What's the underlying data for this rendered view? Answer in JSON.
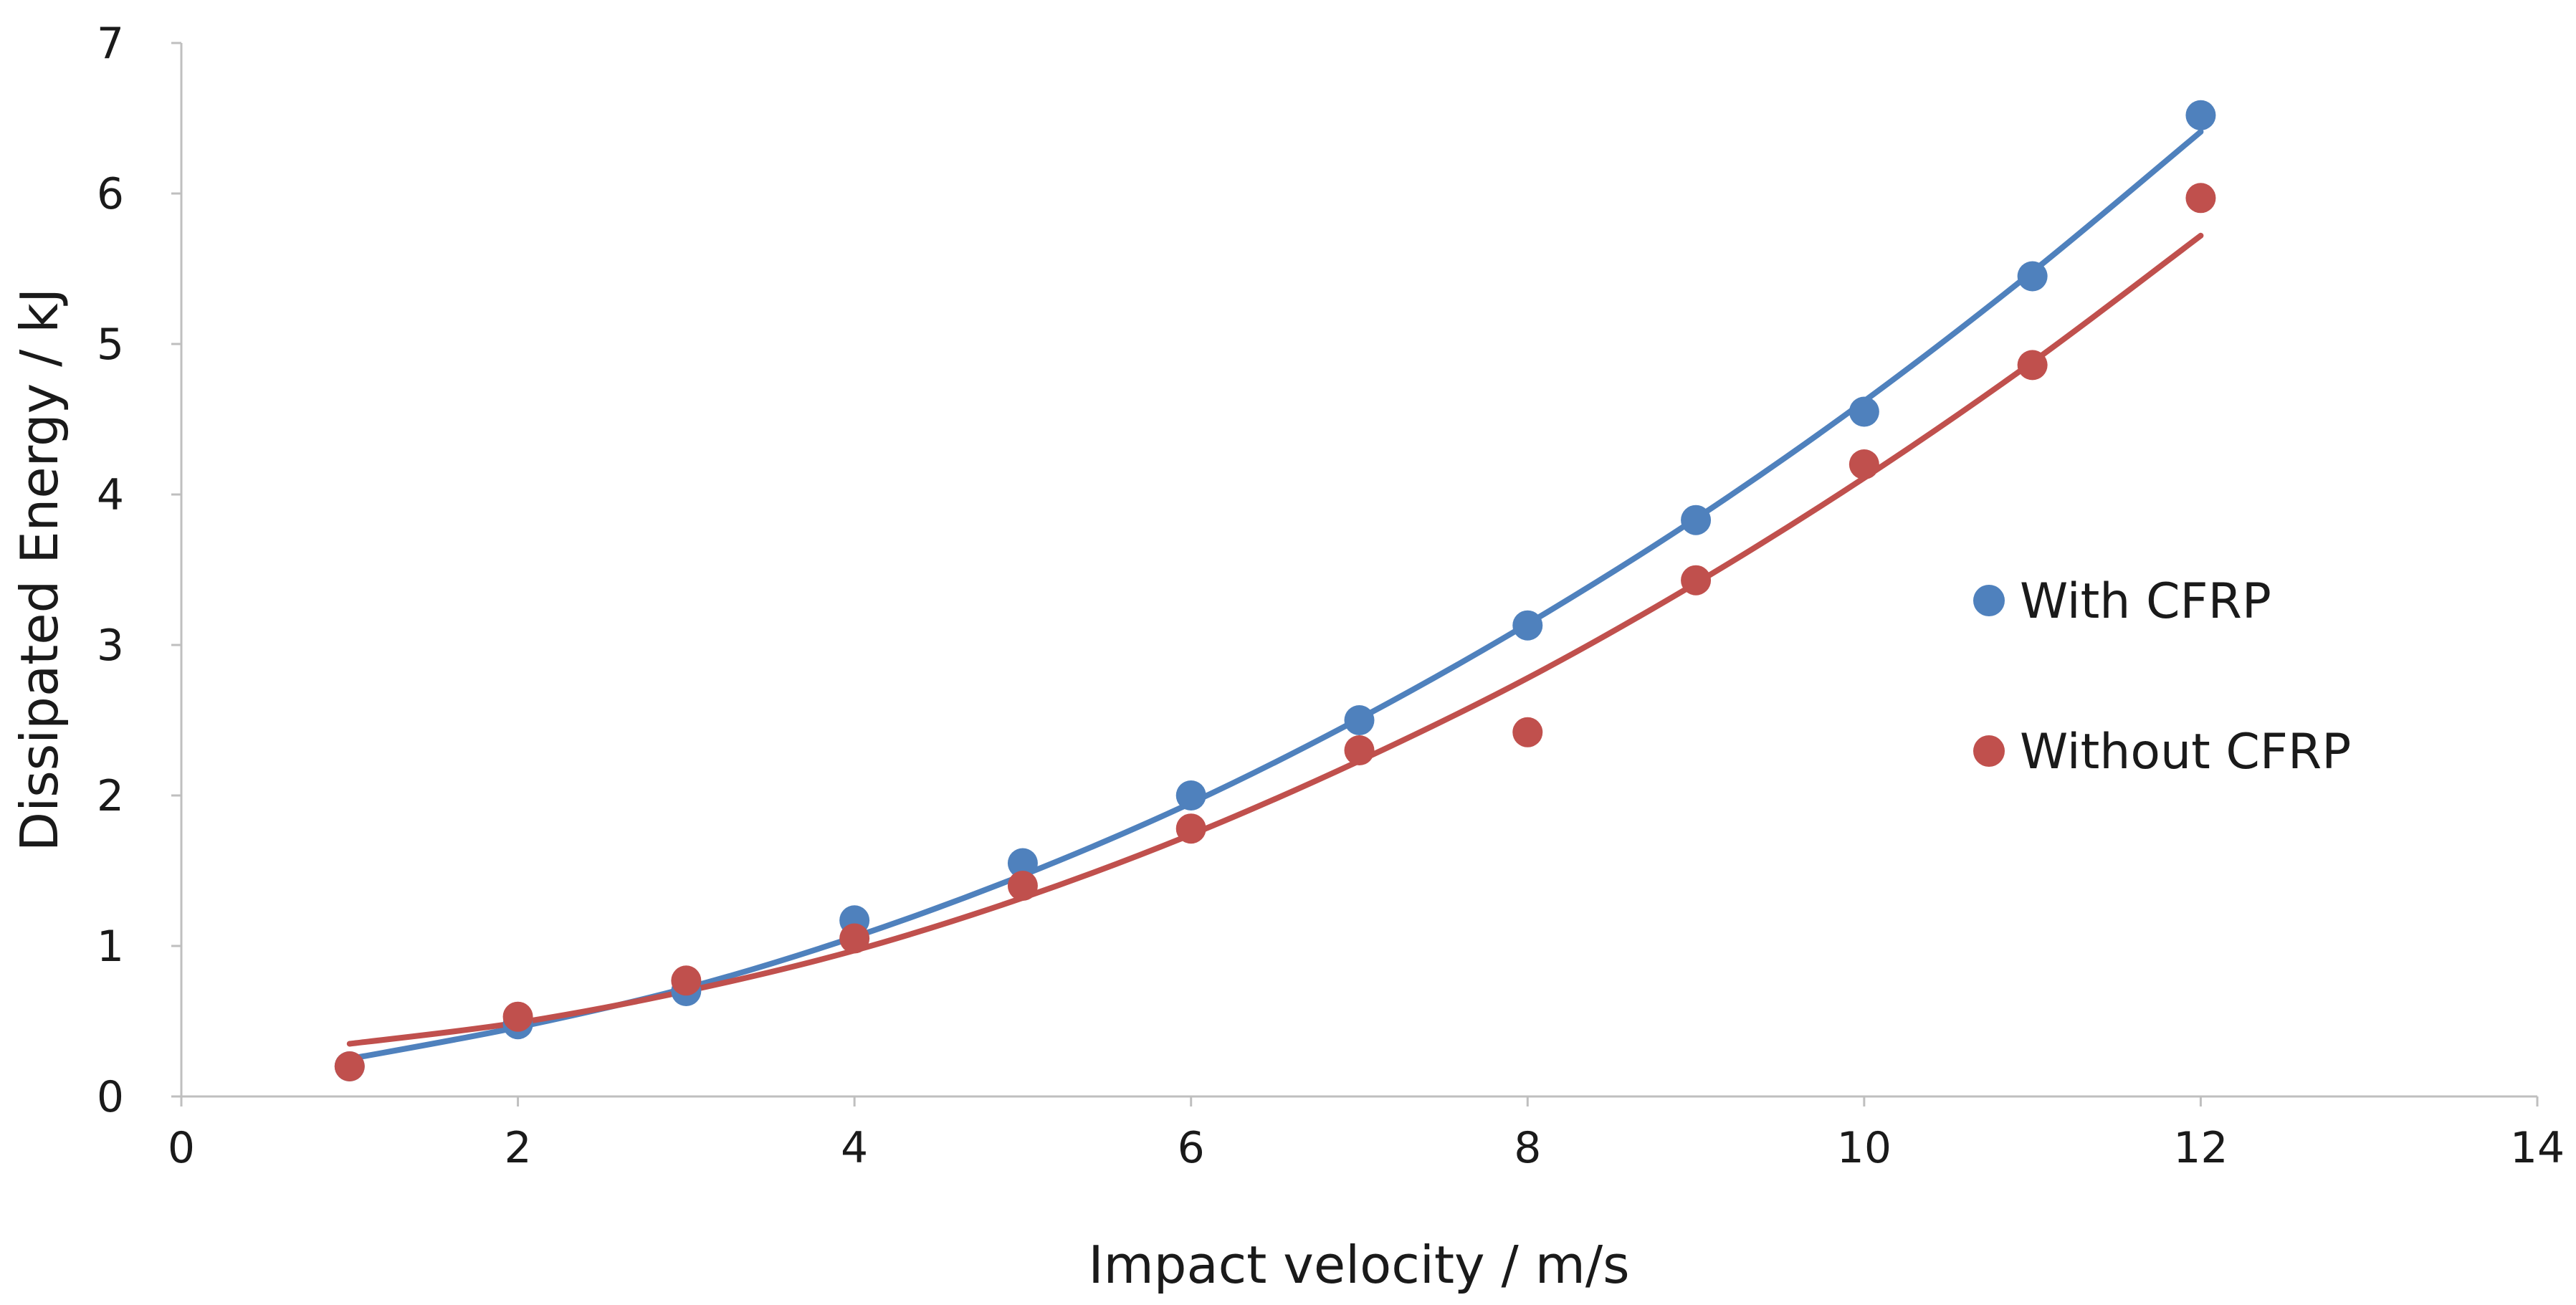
{
  "chart_data": {
    "type": "scatter",
    "title": "",
    "xlabel": "Impact velocity / m/s",
    "ylabel": "Dissipated Energy / kJ",
    "xlim": [
      0,
      14
    ],
    "ylim": [
      0,
      7
    ],
    "x_ticks": [
      "0",
      "2",
      "4",
      "6",
      "8",
      "10",
      "12",
      "14"
    ],
    "y_ticks": [
      "0",
      "1",
      "2",
      "3",
      "4",
      "5",
      "6",
      "7"
    ],
    "grid": false,
    "legend_position": "right",
    "series": [
      {
        "name": "With CFRP",
        "color": "#4f81bd",
        "x": [
          1,
          2,
          3,
          4,
          5,
          6,
          7,
          8,
          9,
          10,
          11,
          12
        ],
        "values": [
          0.2,
          0.48,
          0.7,
          1.17,
          1.55,
          2.0,
          2.5,
          3.13,
          3.83,
          4.55,
          5.45,
          6.52
        ],
        "trendline": {
          "type": "polynomial-2",
          "x": [
            1,
            2,
            3,
            4,
            5,
            6,
            7,
            8,
            9,
            10,
            11,
            12
          ],
          "values": [
            0.25,
            0.46,
            0.72,
            1.06,
            1.47,
            1.95,
            2.51,
            3.14,
            3.84,
            4.62,
            5.48,
            6.41
          ]
        }
      },
      {
        "name": "Without CFRP",
        "color": "#c0504d",
        "x": [
          1,
          2,
          3,
          4,
          5,
          6,
          7,
          8,
          9,
          10,
          11,
          12
        ],
        "values": [
          0.2,
          0.53,
          0.77,
          1.05,
          1.4,
          1.78,
          2.3,
          2.42,
          3.43,
          4.2,
          4.86,
          5.97
        ],
        "trendline": {
          "type": "polynomial-2",
          "x": [
            1,
            2,
            3,
            4,
            5,
            6,
            7,
            8,
            9,
            10,
            11,
            12
          ],
          "values": [
            0.35,
            0.49,
            0.7,
            0.97,
            1.32,
            1.74,
            2.23,
            2.78,
            3.41,
            4.11,
            4.88,
            5.72
          ]
        }
      }
    ]
  }
}
